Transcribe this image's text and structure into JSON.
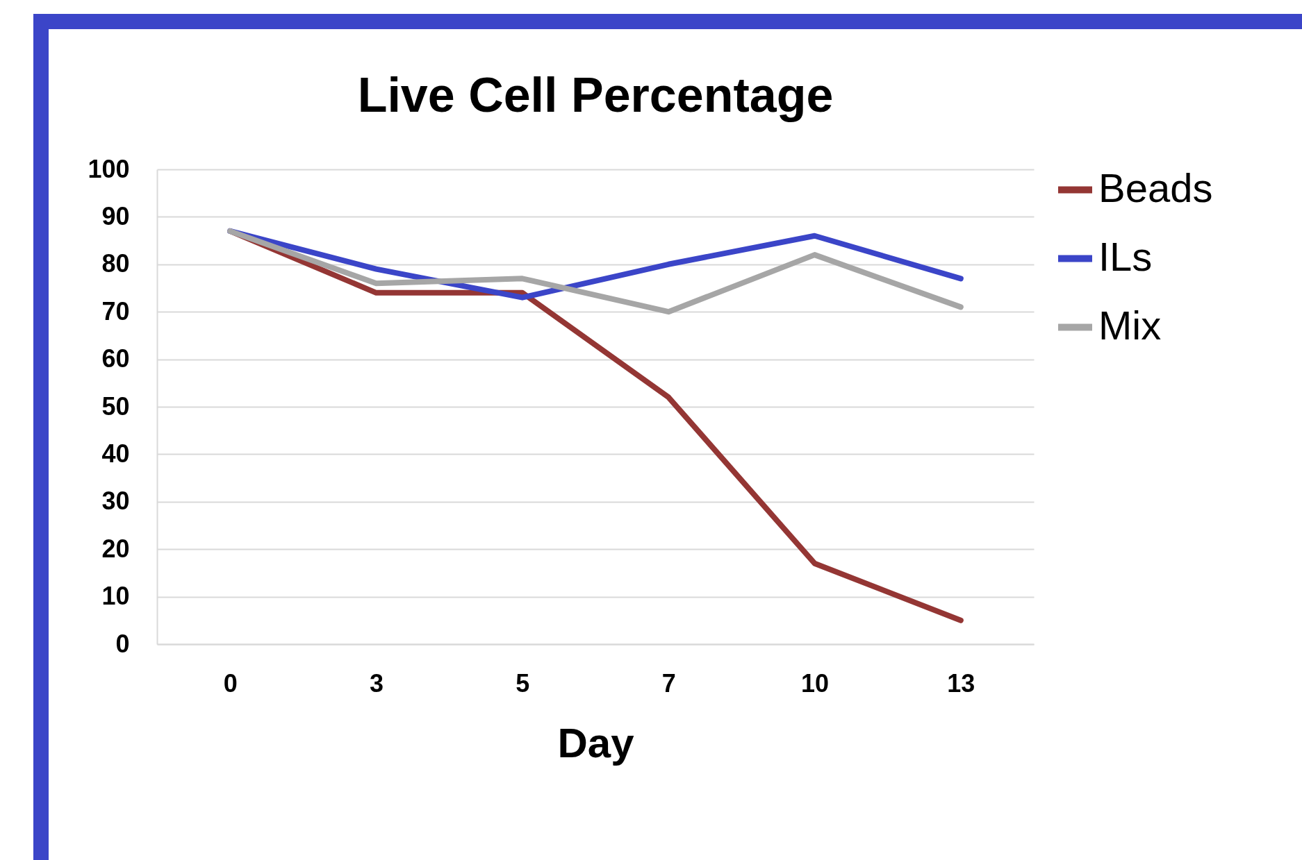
{
  "chart_data": {
    "type": "line",
    "title": "Live Cell Percentage",
    "xlabel": "Day",
    "categories": [
      "0",
      "3",
      "5",
      "7",
      "10",
      "13"
    ],
    "series": [
      {
        "name": "Beads",
        "color": "#943634",
        "values": [
          87,
          74,
          74,
          52,
          17,
          5
        ]
      },
      {
        "name": "ILs",
        "color": "#3b45c8",
        "values": [
          87,
          79,
          73,
          80,
          86,
          77
        ]
      },
      {
        "name": "Mix",
        "color": "#a6a6a6",
        "values": [
          87,
          76,
          77,
          70,
          82,
          71
        ]
      }
    ],
    "ylim": [
      0,
      100
    ],
    "yticks": [
      0,
      10,
      20,
      30,
      40,
      50,
      60,
      70,
      80,
      90,
      100
    ],
    "grid": "y",
    "legend": "right",
    "line_style": "solid"
  }
}
